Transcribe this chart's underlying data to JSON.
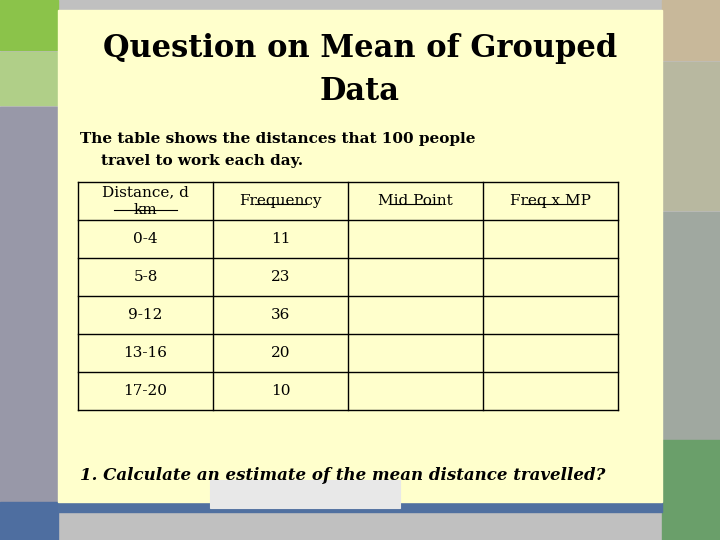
{
  "title_line1": "Question on Mean of Grouped\nData",
  "subtitle": "The table shows the distances that 100 people\n    travel to work each day.",
  "col_headers": [
    "Distance, d\nkm",
    "Frequency",
    "Mid Point",
    "Freq x MP"
  ],
  "rows": [
    [
      "0-4",
      "11",
      "",
      ""
    ],
    [
      "5-8",
      "23",
      "",
      ""
    ],
    [
      "9-12",
      "36",
      "",
      ""
    ],
    [
      "13-16",
      "20",
      "",
      ""
    ],
    [
      "17-20",
      "10",
      "",
      ""
    ]
  ],
  "question": "1. Calculate an estimate of the mean distance travelled?",
  "bg_color": "#FFFFCC",
  "outer_bg": "#C0C0C0",
  "title_font_size": 22,
  "subtitle_font_size": 11,
  "question_font_size": 12,
  "table_font_size": 11
}
